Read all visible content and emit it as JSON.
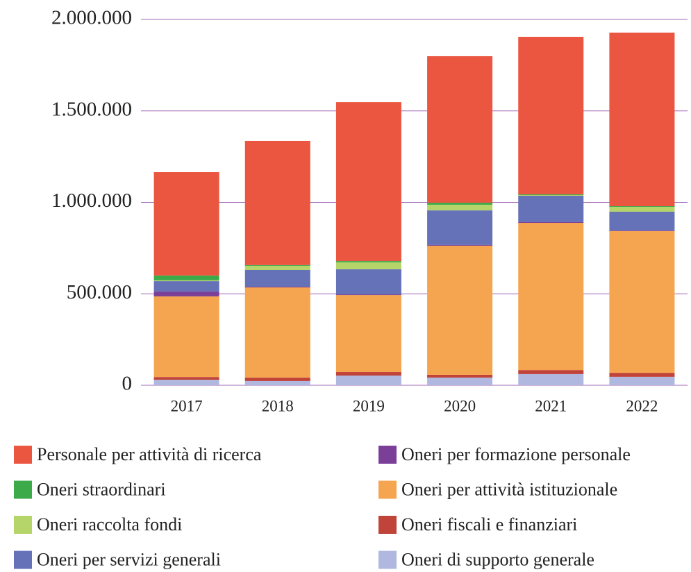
{
  "chart_data": {
    "type": "stacked_bar",
    "categories": [
      "2017",
      "2018",
      "2019",
      "2020",
      "2021",
      "2022"
    ],
    "series": [
      {
        "name": "Personale per attività di ricerca",
        "color": "#eb5640",
        "values": [
          565000,
          679000,
          869000,
          801000,
          861000,
          949000
        ]
      },
      {
        "name": "Oneri straordinari",
        "color": "#3daa4a",
        "values": [
          26000,
          4000,
          7000,
          11000,
          4000,
          4000
        ]
      },
      {
        "name": "Oneri raccolta fondi",
        "color": "#b5d56a",
        "values": [
          5000,
          23000,
          38000,
          31000,
          4000,
          26000
        ]
      },
      {
        "name": "Oneri per servizi generali",
        "color": "#6572b8",
        "values": [
          57000,
          91000,
          137000,
          189000,
          144000,
          103000
        ]
      },
      {
        "name": "Oneri per formazione personale",
        "color": "#7b3f98",
        "values": [
          26000,
          4000,
          4000,
          4000,
          4000,
          3000
        ]
      },
      {
        "name": "Oneri per attività istituzionale",
        "color": "#f5a550",
        "values": [
          441000,
          493000,
          421000,
          706000,
          805000,
          775000
        ]
      },
      {
        "name": "Oneri fiscali e finanziari",
        "color": "#c0443a",
        "values": [
          15000,
          19000,
          19000,
          15000,
          22000,
          22000
        ]
      },
      {
        "name": "Oneri di supporto generale",
        "color": "#b0b8e0",
        "values": [
          30000,
          23000,
          53000,
          42000,
          61000,
          46000
        ]
      }
    ],
    "ylim": [
      0,
      2000000
    ],
    "yticks": [
      0,
      {
        "value": 500000,
        "label": "500.000"
      },
      {
        "value": 1000000,
        "label": "1.000.000"
      },
      {
        "value": 1500000,
        "label": "1.500.000"
      },
      {
        "value": 2000000,
        "label": "2.000.000"
      }
    ],
    "grid": true,
    "grid_color": "#a065b5"
  }
}
